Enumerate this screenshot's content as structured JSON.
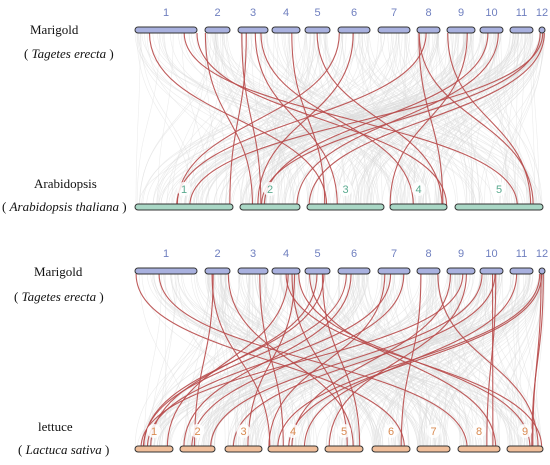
{
  "panel_top": {
    "upper_genome": {
      "name": "Marigold",
      "species_prefix": "( ",
      "species": "Tagetes erecta",
      "species_suffix": " )",
      "chromosomes": [
        "1",
        "2",
        "3",
        "4",
        "5",
        "6",
        "7",
        "8",
        "9",
        "10",
        "11",
        "12"
      ]
    },
    "lower_genome": {
      "name": "Arabidopsis",
      "species_prefix": "( ",
      "species": "Arabidopsis thaliana",
      "species_suffix": " )",
      "chromosomes": [
        "1",
        "2",
        "3",
        "4",
        "5"
      ]
    }
  },
  "panel_bottom": {
    "upper_genome": {
      "name": "Marigold",
      "species_prefix": "( ",
      "species": "Tagetes erecta",
      "species_suffix": " )",
      "chromosomes": [
        "1",
        "2",
        "3",
        "4",
        "5",
        "6",
        "7",
        "8",
        "9",
        "10",
        "11",
        "12"
      ]
    },
    "lower_genome": {
      "name": "lettuce",
      "species_prefix": "( ",
      "species": "Lactuca sativa",
      "species_suffix": " )",
      "chromosomes": [
        "1",
        "2",
        "3",
        "4",
        "5",
        "6",
        "7",
        "8",
        "9"
      ]
    }
  },
  "colors": {
    "marigold_bar": "#a9b1df",
    "marigold_label": "#6f7fbf",
    "arabidopsis_bar": "#a9d7c5",
    "arabidopsis_label": "#5aaa8f",
    "lettuce_bar": "#f0be9a",
    "lettuce_label": "#d98a50",
    "background_links": "#dcdcdc",
    "highlight_links": "#b84a4a",
    "bar_outline": "#333333"
  }
}
